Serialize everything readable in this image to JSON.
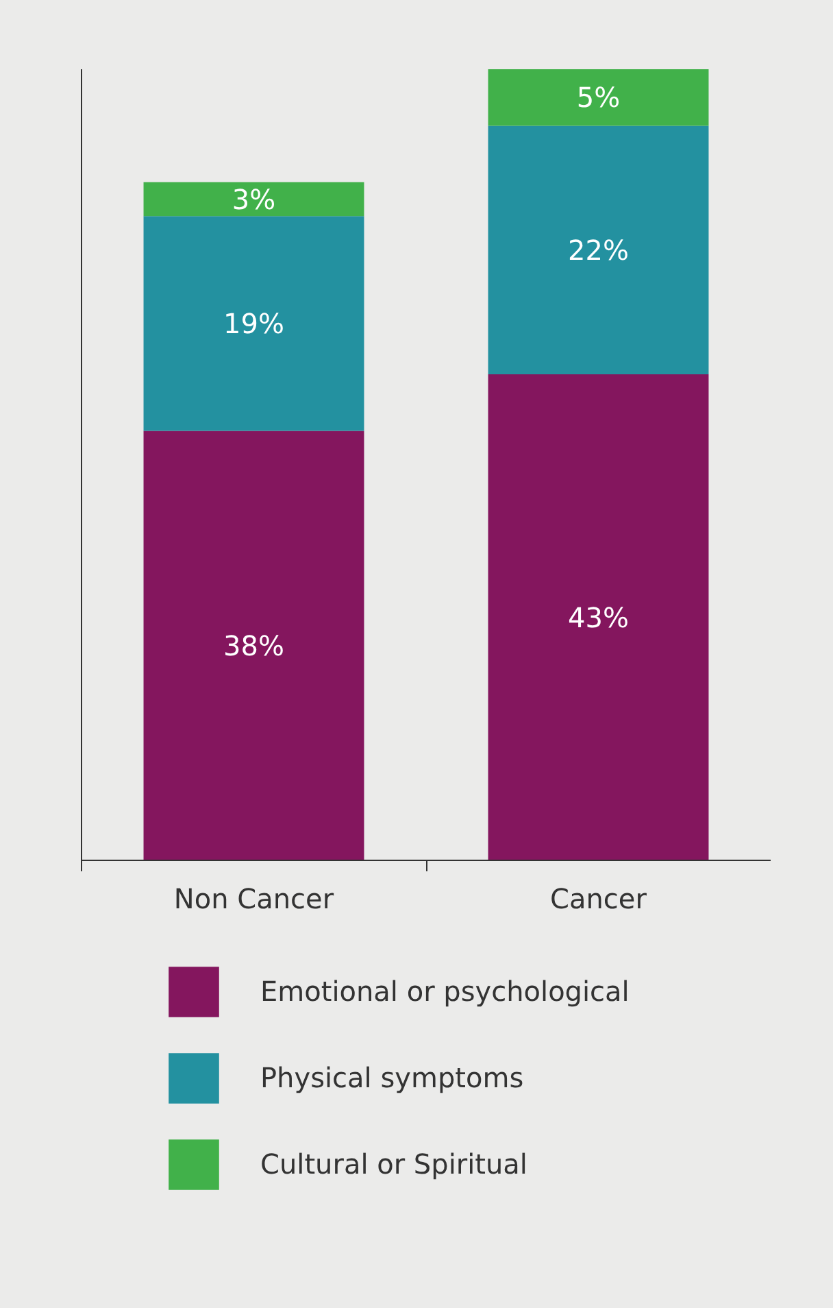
{
  "chart_data": {
    "type": "bar",
    "stacked": true,
    "legend": "bottom",
    "categories": [
      "Non Cancer",
      "Cancer"
    ],
    "series": [
      {
        "name": "Emotional or psychological",
        "color": "#84165e",
        "values": [
          38,
          43
        ],
        "value_labels": [
          "38%",
          "43%"
        ]
      },
      {
        "name": "Physical symptoms",
        "color": "#2391a0",
        "values": [
          19,
          22
        ],
        "value_labels": [
          "19%",
          "22%"
        ]
      },
      {
        "name": "Cultural or Spiritual",
        "color": "#41b14a",
        "values": [
          3,
          5
        ],
        "value_labels": [
          "3%",
          "5%"
        ]
      }
    ]
  }
}
